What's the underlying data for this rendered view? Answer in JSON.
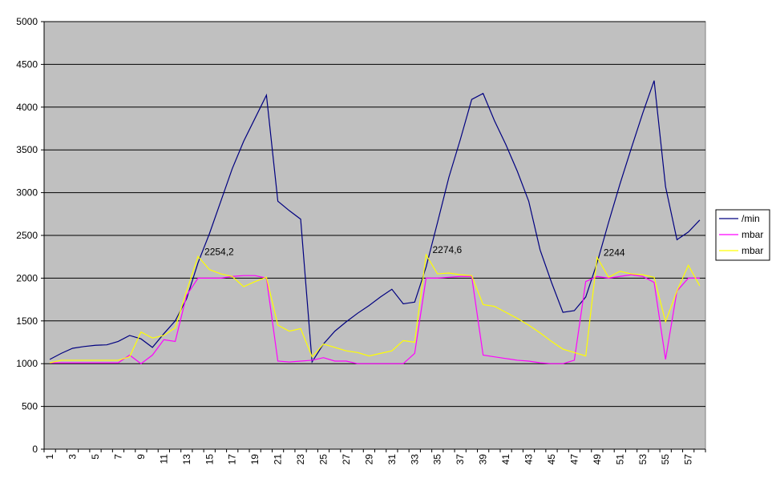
{
  "chart_data": {
    "type": "line",
    "categories": [
      1,
      null,
      3,
      null,
      5,
      null,
      7,
      null,
      9,
      null,
      11,
      null,
      13,
      null,
      15,
      null,
      17,
      null,
      19,
      null,
      21,
      null,
      23,
      null,
      25,
      null,
      27,
      null,
      29,
      null,
      31,
      null,
      33,
      null,
      35,
      null,
      37,
      null,
      39,
      null,
      41,
      null,
      43,
      null,
      45,
      null,
      47,
      null,
      49,
      null,
      51,
      null,
      53,
      null,
      55,
      null,
      57,
      null
    ],
    "series": [
      {
        "name": "/min",
        "color": "#000080",
        "values": [
          1050,
          1120,
          1180,
          1200,
          1215,
          1220,
          1260,
          1330,
          1290,
          1190,
          1350,
          1500,
          1760,
          2180,
          2520,
          2900,
          3280,
          3600,
          3870,
          4140,
          2900,
          2790,
          2690,
          1020,
          1230,
          1380,
          1490,
          1590,
          1680,
          1780,
          1870,
          1700,
          1720,
          2130,
          2650,
          3180,
          3620,
          4090,
          4160,
          3840,
          3560,
          3250,
          2900,
          2330,
          1950,
          1600,
          1620,
          1780,
          2180,
          2650,
          3100,
          3520,
          3930,
          4310,
          3070,
          2450,
          2540,
          2680
        ]
      },
      {
        "name": "mbar",
        "color": "#ff00ff",
        "values": [
          1010,
          1010,
          1010,
          1010,
          1010,
          1010,
          1010,
          1100,
          1000,
          1100,
          1280,
          1260,
          1800,
          2000,
          2000,
          2000,
          2020,
          2030,
          2030,
          2000,
          1030,
          1020,
          1030,
          1040,
          1070,
          1030,
          1030,
          1000,
          1000,
          1000,
          1000,
          1000,
          1120,
          2000,
          2000,
          2010,
          2020,
          2020,
          1100,
          1080,
          1060,
          1040,
          1030,
          1010,
          1000,
          1000,
          1040,
          1960,
          2020,
          2000,
          2020,
          2040,
          2020,
          1950,
          1050,
          1850,
          2000,
          2000
        ]
      },
      {
        "name": "mbar",
        "color": "#ffff00",
        "values": [
          1010,
          1040,
          1040,
          1040,
          1040,
          1040,
          1040,
          1080,
          1370,
          1300,
          1330,
          1420,
          1850,
          2254.2,
          2100,
          2050,
          2020,
          1900,
          1960,
          2010,
          1450,
          1380,
          1410,
          1080,
          1230,
          1190,
          1150,
          1130,
          1090,
          1120,
          1150,
          1270,
          1250,
          2274.6,
          2050,
          2060,
          2040,
          2030,
          1690,
          1670,
          1600,
          1530,
          1450,
          1360,
          1260,
          1170,
          1130,
          1090,
          2244,
          2010,
          2080,
          2050,
          2040,
          2010,
          1490,
          1850,
          2150,
          1910
        ],
        "value_labels": [
          null,
          null,
          null,
          null,
          null,
          null,
          null,
          null,
          null,
          null,
          null,
          null,
          null,
          "2254,2",
          null,
          null,
          null,
          null,
          null,
          null,
          null,
          null,
          null,
          null,
          null,
          null,
          null,
          null,
          null,
          null,
          null,
          null,
          null,
          "2274,6",
          null,
          null,
          null,
          null,
          null,
          null,
          null,
          null,
          null,
          null,
          null,
          null,
          null,
          null,
          "2244",
          null,
          null,
          null,
          null,
          null,
          null,
          null,
          null,
          null
        ]
      }
    ],
    "ylim": [
      0,
      5000
    ],
    "yticks": [
      0,
      500,
      1000,
      1500,
      2000,
      2500,
      3000,
      3500,
      4000,
      4500,
      5000
    ],
    "grid": true,
    "background": "#c0c0c0",
    "legend": "right"
  }
}
